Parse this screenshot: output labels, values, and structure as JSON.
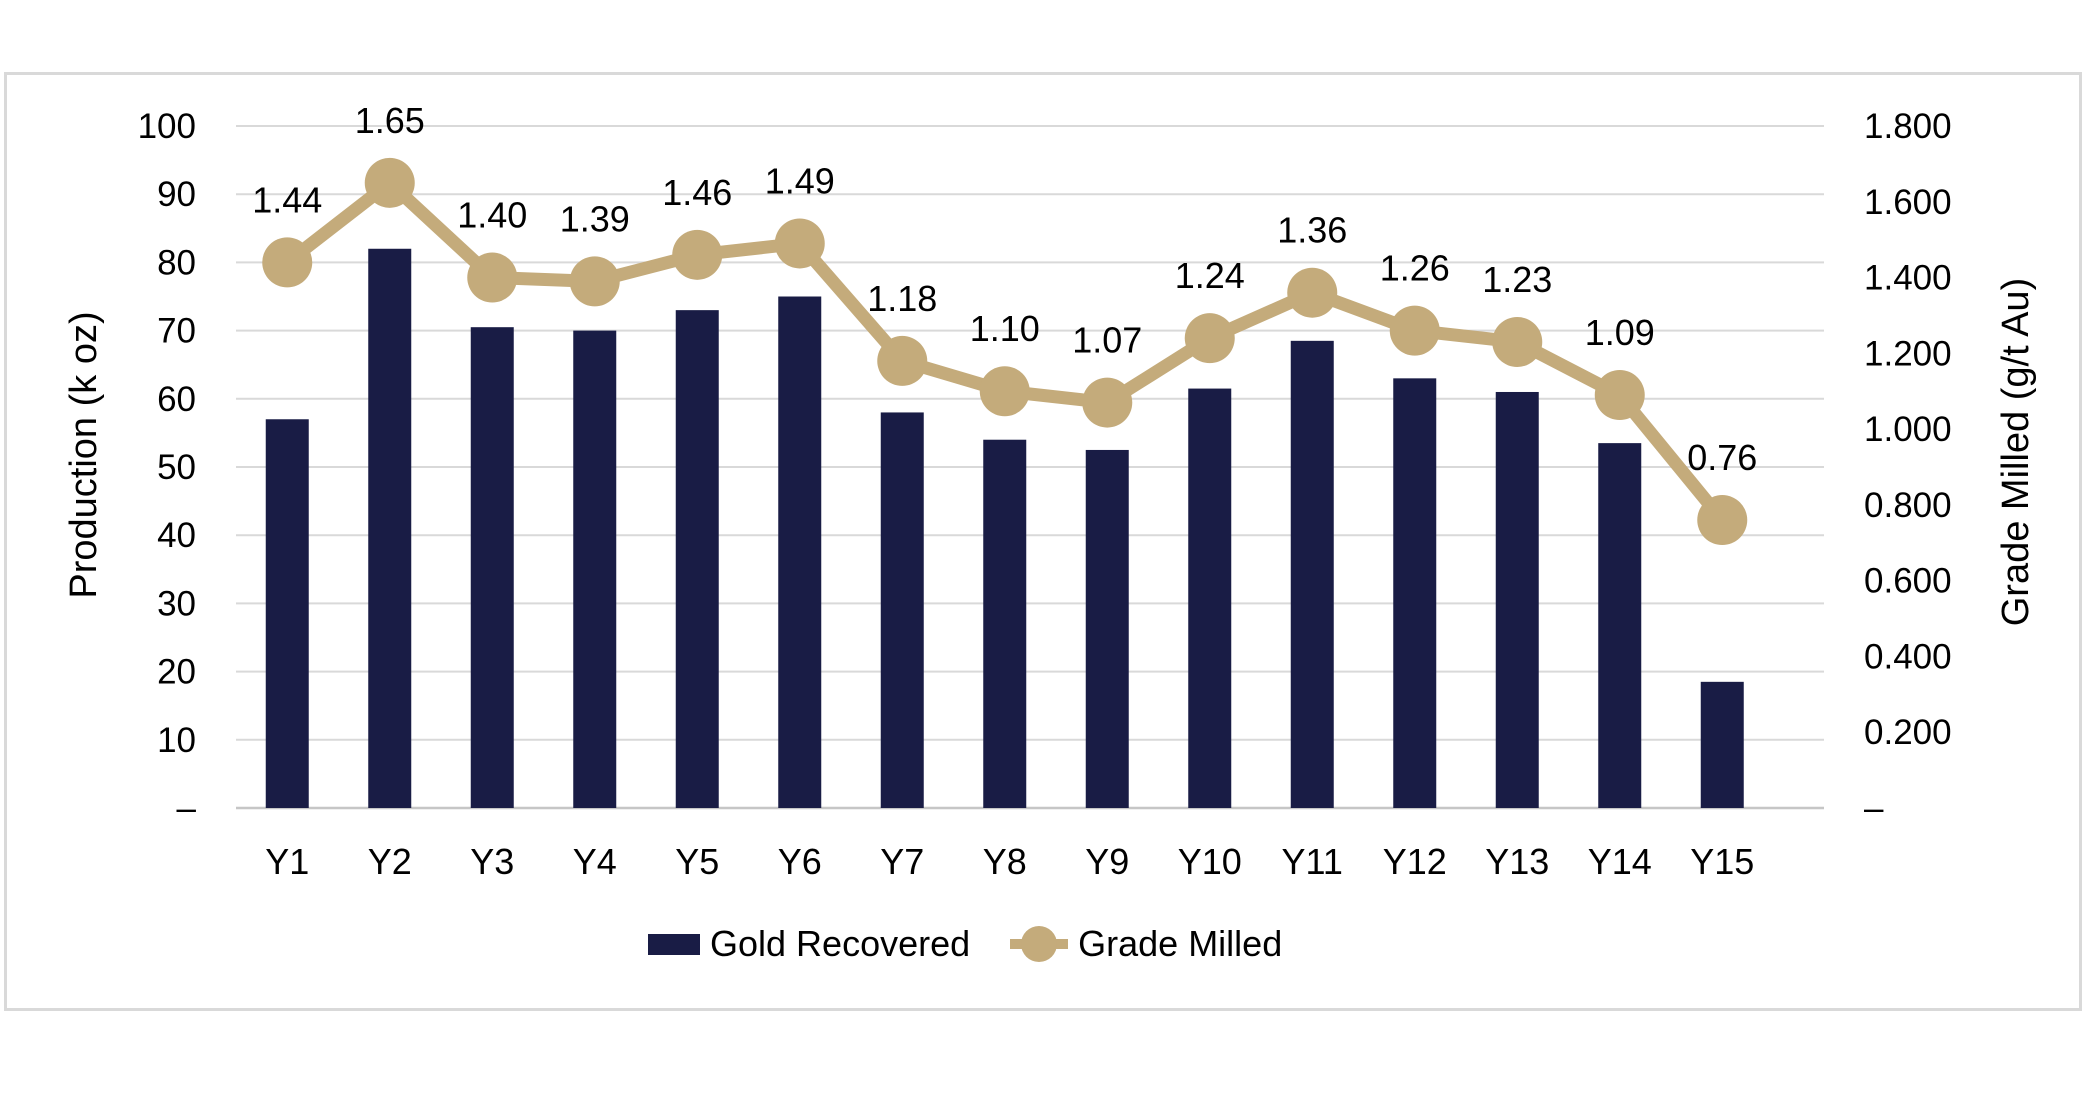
{
  "chart_data": {
    "type": "combo-bar-line",
    "title": "",
    "categories": [
      "Y1",
      "Y2",
      "Y3",
      "Y4",
      "Y5",
      "Y6",
      "Y7",
      "Y8",
      "Y9",
      "Y10",
      "Y11",
      "Y12",
      "Y13",
      "Y14",
      "Y15"
    ],
    "series": [
      {
        "name": "Gold Recovered",
        "chart_type": "bar",
        "axis": "left",
        "values": [
          57,
          82,
          70.5,
          70,
          73,
          75,
          58,
          54,
          52.5,
          61.5,
          68.5,
          63,
          61,
          53.5,
          18.5
        ]
      },
      {
        "name": "Grade Milled",
        "chart_type": "line",
        "axis": "right",
        "values": [
          1.44,
          1.65,
          1.4,
          1.39,
          1.46,
          1.49,
          1.18,
          1.1,
          1.07,
          1.24,
          1.36,
          1.26,
          1.23,
          1.09,
          0.76
        ],
        "data_labels": [
          "1.44",
          "1.65",
          "1.40",
          "1.39",
          "1.46",
          "1.49",
          "1.18",
          "1.10",
          "1.07",
          "1.24",
          "1.36",
          "1.26",
          "1.23",
          "1.09",
          "0.76"
        ]
      }
    ],
    "left_axis": {
      "title": "Production (k oz)",
      "min": 0,
      "max": 100,
      "tick_step": 10,
      "tick_labels": [
        "100",
        "90",
        "80",
        "70",
        "60",
        "50",
        "40",
        "30",
        "20",
        "10",
        "–"
      ]
    },
    "right_axis": {
      "title": "Grade Milled (g/t Au)",
      "min": 0,
      "max": 1.8,
      "tick_step": 0.2,
      "tick_labels": [
        "1.800",
        "1.600",
        "1.400",
        "1.200",
        "1.000",
        "0.800",
        "0.600",
        "0.400",
        "0.200",
        "–"
      ]
    },
    "grid": true,
    "legend_position": "bottom"
  },
  "legend": {
    "items": [
      {
        "label": "Gold Recovered",
        "marker": "bar",
        "color": "#191C45"
      },
      {
        "label": "Grade Milled",
        "marker": "line-circle",
        "color": "#C4AB7B"
      }
    ]
  },
  "colors": {
    "bar": "#191C45",
    "line": "#C4AB7B",
    "gridline": "#D9D9D9",
    "baseline": "#C6C6C6",
    "border": "#D9D9D9",
    "text": "#000000",
    "background": "#FFFFFF"
  }
}
